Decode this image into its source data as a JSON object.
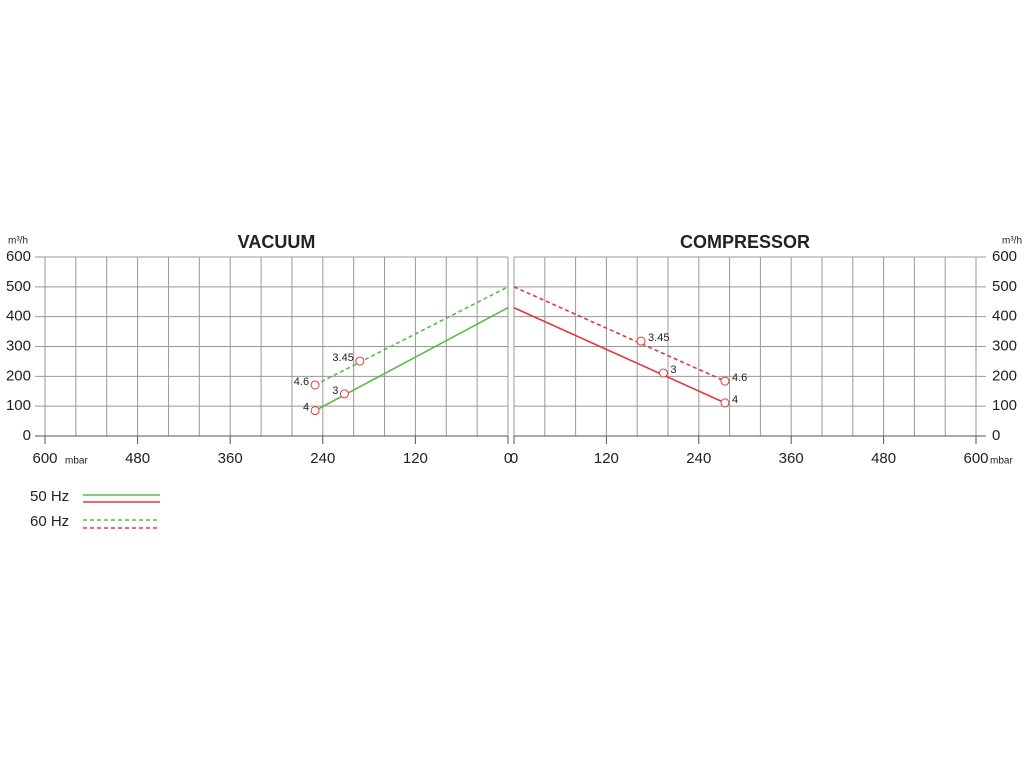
{
  "chart_data": [
    {
      "type": "line",
      "title": "VACUUM",
      "ylabel": "m³/h",
      "xlabel": "mbar",
      "xlim": [
        600,
        0
      ],
      "xticks": [
        600,
        480,
        360,
        240,
        120,
        0
      ],
      "xgrid": [
        0,
        40,
        80,
        120,
        160,
        200,
        240,
        280,
        320,
        360,
        400,
        440,
        480,
        520,
        560,
        600
      ],
      "ylim": [
        0,
        600
      ],
      "yticks": [
        0,
        100,
        200,
        300,
        400,
        500,
        600
      ],
      "grid": true,
      "yaxis_side": "left",
      "point_label_side": "left",
      "series": [
        {
          "name": "50 Hz",
          "color": "#5cb84a",
          "dash": false,
          "x": [
            250,
            0
          ],
          "values": [
            85,
            430
          ],
          "points": [
            {
              "x": 250,
              "y": 85,
              "label": "4"
            },
            {
              "x": 212,
              "y": 141,
              "label": "3"
            }
          ]
        },
        {
          "name": "60 Hz",
          "color": "#5cb84a",
          "dash": true,
          "x": [
            250,
            0
          ],
          "values": [
            171,
            500
          ],
          "points": [
            {
              "x": 250,
              "y": 171,
              "label": "4.6"
            },
            {
              "x": 192,
              "y": 251,
              "label": "3.45"
            }
          ]
        }
      ]
    },
    {
      "type": "line",
      "title": "COMPRESSOR",
      "ylabel": "m³/h",
      "xlabel": "mbar",
      "xlim": [
        0,
        600
      ],
      "xticks": [
        0,
        120,
        240,
        360,
        480,
        600
      ],
      "xgrid": [
        0,
        40,
        80,
        120,
        160,
        200,
        240,
        280,
        320,
        360,
        400,
        440,
        480,
        520,
        560,
        600
      ],
      "ylim": [
        0,
        600
      ],
      "yticks": [
        0,
        100,
        200,
        300,
        400,
        500,
        600
      ],
      "grid": true,
      "yaxis_side": "right",
      "point_label_side": "right",
      "series": [
        {
          "name": "50 Hz",
          "color": "#e0393e",
          "dash": false,
          "x": [
            0,
            274
          ],
          "values": [
            430,
            111
          ],
          "points": [
            {
              "x": 194,
              "y": 211,
              "label": "3"
            },
            {
              "x": 274,
              "y": 111,
              "label": "4"
            }
          ]
        },
        {
          "name": "60 Hz",
          "color": "#e0393e",
          "dash": true,
          "x": [
            0,
            274
          ],
          "values": [
            500,
            184
          ],
          "points": [
            {
              "x": 165,
              "y": 318,
              "label": "3.45"
            },
            {
              "x": 274,
              "y": 184,
              "label": "4.6"
            }
          ]
        }
      ]
    }
  ]
}
